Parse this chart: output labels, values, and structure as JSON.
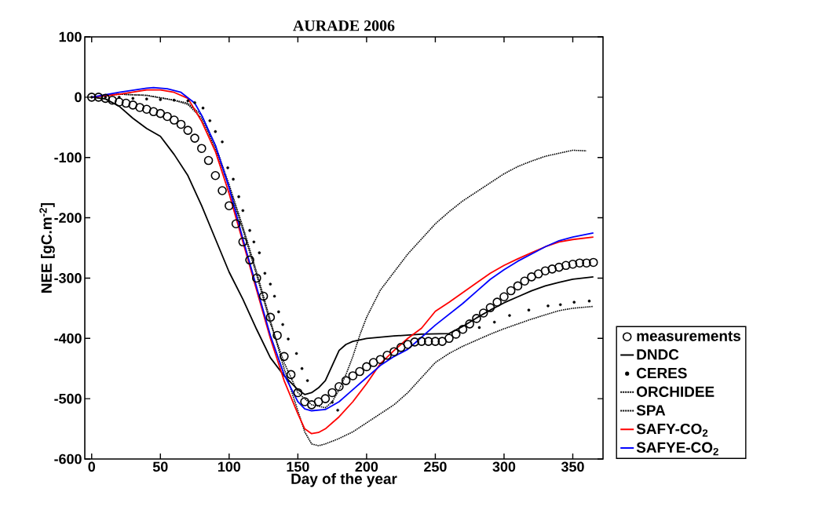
{
  "chart_data": {
    "type": "line",
    "title": "AURADE 2006",
    "xlabel": "Day of the year",
    "ylabel": "NEE [gC.m$^{-2}$]",
    "xlim": [
      -5,
      372
    ],
    "ylim": [
      -600,
      100
    ],
    "xticks": [
      0,
      50,
      100,
      150,
      200,
      250,
      300,
      350
    ],
    "yticks": [
      -600,
      -500,
      -400,
      -300,
      -200,
      -100,
      0,
      100
    ],
    "legend": "right",
    "series": [
      {
        "name": "measurements",
        "type": "scatter",
        "marker": "circle",
        "color": "#000000",
        "x": [
          0,
          5,
          10,
          15,
          20,
          25,
          30,
          35,
          40,
          45,
          50,
          55,
          60,
          65,
          70,
          75,
          80,
          85,
          90,
          95,
          100,
          105,
          110,
          115,
          120,
          125,
          130,
          135,
          140,
          145,
          150,
          155,
          160,
          165,
          170,
          175,
          180,
          185,
          190,
          195,
          200,
          205,
          210,
          215,
          220,
          225,
          230,
          235,
          240,
          245,
          250,
          255,
          260,
          265,
          270,
          275,
          280,
          285,
          290,
          295,
          300,
          305,
          310,
          315,
          320,
          325,
          330,
          335,
          340,
          345,
          350,
          355,
          360,
          365
        ],
        "values": [
          0,
          0,
          -2,
          -5,
          -8,
          -10,
          -13,
          -17,
          -20,
          -24,
          -27,
          -32,
          -38,
          -45,
          -55,
          -68,
          -85,
          -105,
          -130,
          -155,
          -180,
          -210,
          -240,
          -270,
          -300,
          -330,
          -365,
          -395,
          -430,
          -460,
          -490,
          -505,
          -510,
          -505,
          -500,
          -490,
          -480,
          -470,
          -462,
          -455,
          -447,
          -440,
          -435,
          -428,
          -422,
          -415,
          -410,
          -406,
          -405,
          -405,
          -405,
          -405,
          -400,
          -393,
          -385,
          -376,
          -367,
          -358,
          -349,
          -340,
          -331,
          -321,
          -313,
          -305,
          -298,
          -293,
          -288,
          -285,
          -282,
          -279,
          -277,
          -275,
          -275,
          -274
        ]
      },
      {
        "name": "DNDC",
        "line_style": "solid",
        "color": "#000000",
        "x": [
          0,
          10,
          20,
          30,
          40,
          50,
          60,
          70,
          80,
          90,
          100,
          110,
          120,
          130,
          140,
          150,
          155,
          160,
          165,
          170,
          175,
          180,
          185,
          190,
          200,
          220,
          240,
          260,
          270,
          280,
          290,
          300,
          310,
          320,
          330,
          340,
          350,
          365
        ],
        "values": [
          0,
          -3,
          -15,
          -35,
          -52,
          -65,
          -95,
          -130,
          -180,
          -235,
          -290,
          -335,
          -385,
          -432,
          -462,
          -485,
          -493,
          -490,
          -482,
          -470,
          -445,
          -420,
          -410,
          -405,
          -400,
          -396,
          -393,
          -392,
          -380,
          -366,
          -353,
          -341,
          -331,
          -321,
          -313,
          -307,
          -302,
          -298
        ]
      },
      {
        "name": "CERES",
        "type": "scatter",
        "marker": "circle",
        "line_style": "dotted",
        "color": "#000000",
        "x": [
          0,
          10,
          20,
          30,
          40,
          50,
          60,
          70,
          75,
          81,
          86,
          90,
          95,
          99,
          103,
          107,
          110,
          115,
          118,
          122,
          126,
          130,
          133,
          136,
          139,
          143,
          149,
          153,
          157,
          175,
          179,
          282,
          293,
          304,
          318,
          332,
          341,
          351,
          362
        ],
        "values": [
          0,
          0,
          0,
          -2,
          -3,
          -4,
          -5,
          -6,
          -9,
          -18,
          -39,
          -57,
          -74,
          -117,
          -136,
          -165,
          -188,
          -221,
          -240,
          -258,
          -292,
          -310,
          -330,
          -356,
          -377,
          -401,
          -425,
          -450,
          -470,
          -506,
          -519,
          -382,
          -373,
          -362,
          -353,
          -346,
          -344,
          -340,
          -338
        ]
      },
      {
        "name": "ORCHIDEE",
        "line_style": "dotted",
        "color": "#000000",
        "x": [
          0,
          20,
          40,
          60,
          70,
          80,
          90,
          100,
          110,
          120,
          130,
          140,
          150,
          155,
          160,
          165,
          170,
          180,
          190,
          200,
          210,
          220,
          230,
          240,
          250,
          260,
          270,
          280,
          290,
          300,
          310,
          320,
          330,
          340,
          350,
          365
        ],
        "values": [
          0,
          5,
          3,
          -5,
          -10,
          -30,
          -80,
          -145,
          -215,
          -290,
          -370,
          -450,
          -520,
          -555,
          -575,
          -578,
          -575,
          -566,
          -555,
          -540,
          -525,
          -510,
          -490,
          -465,
          -440,
          -425,
          -413,
          -403,
          -393,
          -384,
          -376,
          -368,
          -361,
          -354,
          -350,
          -347
        ]
      },
      {
        "name": "SPA",
        "line_style": "dotted",
        "color": "#000000",
        "x": [
          0,
          20,
          40,
          60,
          70,
          80,
          90,
          100,
          110,
          120,
          130,
          140,
          150,
          160,
          170,
          175,
          180,
          185,
          190,
          195,
          200,
          210,
          220,
          230,
          240,
          250,
          260,
          270,
          280,
          290,
          300,
          310,
          320,
          330,
          340,
          350,
          360
        ],
        "values": [
          0,
          5,
          3,
          -5,
          -12,
          -35,
          -85,
          -150,
          -220,
          -295,
          -375,
          -440,
          -490,
          -510,
          -515,
          -505,
          -485,
          -460,
          -430,
          -395,
          -365,
          -320,
          -290,
          -260,
          -235,
          -210,
          -190,
          -172,
          -157,
          -142,
          -127,
          -115,
          -106,
          -98,
          -93,
          -88,
          -89
        ]
      },
      {
        "name": "SAFY-CO$_{2}$",
        "line_style": "solid",
        "color": "#ff0000",
        "x": [
          0,
          20,
          40,
          50,
          60,
          70,
          80,
          90,
          100,
          110,
          120,
          130,
          140,
          150,
          155,
          160,
          165,
          170,
          180,
          190,
          200,
          210,
          220,
          230,
          240,
          250,
          260,
          270,
          280,
          290,
          300,
          310,
          320,
          330,
          340,
          350,
          365
        ],
        "values": [
          0,
          5,
          12,
          12,
          8,
          -2,
          -40,
          -90,
          -160,
          -240,
          -320,
          -400,
          -470,
          -525,
          -550,
          -558,
          -556,
          -550,
          -530,
          -505,
          -475,
          -442,
          -420,
          -400,
          -383,
          -355,
          -340,
          -324,
          -308,
          -292,
          -279,
          -268,
          -258,
          -248,
          -240,
          -236,
          -232
        ]
      },
      {
        "name": "SAFYE-CO$_{2}$",
        "line_style": "solid",
        "color": "#0000ff",
        "x": [
          0,
          20,
          40,
          45,
          55,
          65,
          75,
          80,
          90,
          100,
          110,
          120,
          130,
          140,
          150,
          155,
          160,
          170,
          180,
          190,
          200,
          210,
          220,
          230,
          240,
          250,
          260,
          270,
          280,
          290,
          300,
          310,
          320,
          330,
          340,
          350,
          365
        ],
        "values": [
          0,
          8,
          15,
          16,
          14,
          8,
          -10,
          -30,
          -80,
          -150,
          -235,
          -315,
          -395,
          -460,
          -505,
          -517,
          -520,
          -518,
          -505,
          -485,
          -465,
          -445,
          -430,
          -418,
          -398,
          -378,
          -360,
          -342,
          -322,
          -302,
          -286,
          -272,
          -260,
          -248,
          -238,
          -232,
          -225
        ]
      }
    ]
  }
}
